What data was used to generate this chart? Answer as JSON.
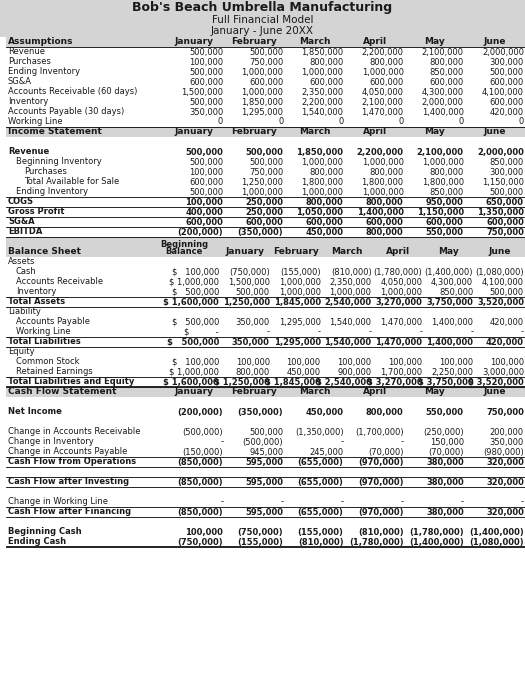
{
  "title1": "Bob's Beach Umbrella Manufacturing",
  "title2": "Full Financial Model",
  "title3": "January - June 20XX",
  "header_bg": "#d4d4d4",
  "months": [
    "January",
    "February",
    "March",
    "April",
    "May",
    "June"
  ],
  "assumptions_rows": [
    [
      "Assumptions",
      "January",
      "February",
      "March",
      "April",
      "May",
      "June"
    ],
    [
      "Revenue",
      "500,000",
      "500,000",
      "1,850,000",
      "2,200,000",
      "2,100,000",
      "2,000,000"
    ],
    [
      "Purchases",
      "100,000",
      "750,000",
      "800,000",
      "800,000",
      "800,000",
      "300,000"
    ],
    [
      "Ending Inventory",
      "500,000",
      "1,000,000",
      "1,000,000",
      "1,000,000",
      "850,000",
      "500,000"
    ],
    [
      "SG&A",
      "600,000",
      "600,000",
      "600,000",
      "600,000",
      "600,000",
      "600,000"
    ],
    [
      "Accounts Receivable (60 days)",
      "1,500,000",
      "1,000,000",
      "2,350,000",
      "4,050,000",
      "4,300,000",
      "4,100,000"
    ],
    [
      "Inventory",
      "500,000",
      "1,850,000",
      "2,200,000",
      "2,100,000",
      "2,000,000",
      "600,000"
    ],
    [
      "Accounts Payable (30 days)",
      "350,000",
      "1,295,000",
      "1,540,000",
      "1,470,000",
      "1,400,000",
      "420,000"
    ],
    [
      "Working Line",
      "0",
      "0",
      "0",
      "0",
      "0",
      "0"
    ]
  ],
  "income_rows": [
    [
      "Income Statement",
      "January",
      "February",
      "March",
      "April",
      "May",
      "June"
    ],
    [
      "",
      "",
      "",
      "",
      "",
      "",
      ""
    ],
    [
      "Revenue",
      "500,000",
      "500,000",
      "1,850,000",
      "2,200,000",
      "2,100,000",
      "2,000,000"
    ],
    [
      "  Beginning Inventory",
      "500,000",
      "500,000",
      "1,000,000",
      "1,000,000",
      "1,000,000",
      "850,000"
    ],
    [
      "    Purchases",
      "100,000",
      "750,000",
      "800,000",
      "800,000",
      "800,000",
      "300,000"
    ],
    [
      "    Total Available for Sale",
      "600,000",
      "1,250,000",
      "1,800,000",
      "1,800,000",
      "1,800,000",
      "1,150,000"
    ],
    [
      "  Ending Inventory",
      "500,000",
      "1,000,000",
      "1,000,000",
      "1,000,000",
      "850,000",
      "500,000"
    ],
    [
      "COGS",
      "100,000",
      "250,000",
      "800,000",
      "800,000",
      "950,000",
      "650,000"
    ],
    [
      "Gross Profit",
      "400,000",
      "250,000",
      "1,050,000",
      "1,400,000",
      "1,150,000",
      "1,350,000"
    ],
    [
      "SG&A",
      "600,000",
      "600,000",
      "600,000",
      "600,000",
      "600,000",
      "600,000"
    ],
    [
      "EBITDA",
      "(200,000)",
      "(350,000)",
      "450,000",
      "800,000",
      "550,000",
      "750,000"
    ]
  ],
  "balance_rows": [
    [
      "Balance Sheet",
      "Beginning\nBalance",
      "January",
      "February",
      "March",
      "April",
      "May",
      "June"
    ],
    [
      "Assets",
      "",
      "",
      "",
      "",
      "",
      "",
      ""
    ],
    [
      "  Cash",
      "$   100,000",
      "(750,000)",
      "(155,000)",
      "(810,000)",
      "(1,780,000)",
      "(1,400,000)",
      "(1,080,000)"
    ],
    [
      "  Accounts Receivable",
      "$ 1,000,000",
      "1,500,000",
      "1,000,000",
      "2,350,000",
      "4,050,000",
      "4,300,000",
      "4,100,000"
    ],
    [
      "  Inventory",
      "$   500,000",
      "500,000",
      "1,000,000",
      "1,000,000",
      "1,000,000",
      "850,000",
      "500,000"
    ],
    [
      "Total Assets",
      "$ 1,600,000",
      "1,250,000",
      "1,845,000",
      "2,540,000",
      "3,270,000",
      "3,750,000",
      "3,520,000"
    ],
    [
      "Liability",
      "",
      "",
      "",
      "",
      "",
      "",
      ""
    ],
    [
      "  Accounts Payable",
      "$   500,000",
      "350,000",
      "1,295,000",
      "1,540,000",
      "1,470,000",
      "1,400,000",
      "420,000"
    ],
    [
      "  Working Line",
      "$          -",
      "-",
      "-",
      "-",
      "-",
      "-",
      "-"
    ],
    [
      "Total Liabilities",
      "$   500,000",
      "350,000",
      "1,295,000",
      "1,540,000",
      "1,470,000",
      "1,400,000",
      "420,000"
    ],
    [
      "Equity",
      "",
      "",
      "",
      "",
      "",
      "",
      ""
    ],
    [
      "  Common Stock",
      "$   100,000",
      "100,000",
      "100,000",
      "100,000",
      "100,000",
      "100,000",
      "100,000"
    ],
    [
      "  Retained Earnings",
      "$ 1,000,000",
      "800,000",
      "450,000",
      "900,000",
      "1,700,000",
      "2,250,000",
      "3,000,000"
    ],
    [
      "Total Liabilities and Equity",
      "$ 1,600,000",
      "$ 1,250,000",
      "$ 1,845,000",
      "$ 2,540,000",
      "$ 3,270,000",
      "$ 3,750,000",
      "$ 3,520,000"
    ]
  ],
  "cashflow_rows": [
    [
      "Cash Flow Statement",
      "January",
      "February",
      "March",
      "April",
      "May",
      "June"
    ],
    [
      "",
      "",
      "",
      "",
      "",
      "",
      ""
    ],
    [
      "Net Income",
      "(200,000)",
      "(350,000)",
      "450,000",
      "800,000",
      "550,000",
      "750,000"
    ],
    [
      "",
      "",
      "",
      "",
      "",
      "",
      ""
    ],
    [
      "Change in Accounts Receivable",
      "(500,000)",
      "500,000",
      "(1,350,000)",
      "(1,700,000)",
      "(250,000)",
      "200,000"
    ],
    [
      "Change in Inventory",
      "-",
      "(500,000)",
      "-",
      "-",
      "150,000",
      "350,000"
    ],
    [
      "Change in Accounts Payable",
      "(150,000)",
      "945,000",
      "245,000",
      "(70,000)",
      "(70,000)",
      "(980,000)"
    ],
    [
      "Cash Flow from Operations",
      "(850,000)",
      "595,000",
      "(655,000)",
      "(970,000)",
      "380,000",
      "320,000"
    ],
    [
      "",
      "",
      "",
      "",
      "",
      "",
      ""
    ],
    [
      "Cash Flow after Investing",
      "(850,000)",
      "595,000",
      "(655,000)",
      "(970,000)",
      "380,000",
      "320,000"
    ],
    [
      "",
      "",
      "",
      "",
      "",
      "",
      ""
    ],
    [
      "Change in Working Line",
      "-",
      "-",
      "-",
      "-",
      "-",
      "-"
    ],
    [
      "Cash Flow after Financing",
      "(850,000)",
      "595,000",
      "(655,000)",
      "(970,000)",
      "380,000",
      "320,000"
    ],
    [
      "",
      "",
      "",
      "",
      "",
      "",
      ""
    ],
    [
      "Beginning Cash",
      "100,000",
      "(750,000)",
      "(155,000)",
      "(810,000)",
      "(1,780,000)",
      "(1,400,000)"
    ],
    [
      "Ending Cash",
      "(750,000)",
      "(155,000)",
      "(810,000)",
      "(1,780,000)",
      "(1,400,000)",
      "(1,080,000)"
    ]
  ],
  "income_bold": [
    "Revenue",
    "COGS",
    "Gross Profit",
    "SG&A",
    "EBITDA"
  ],
  "income_topline": [
    "COGS",
    "Gross Profit",
    "SG&A",
    "EBITDA"
  ],
  "income_bottomline": [
    "EBITDA"
  ],
  "balance_bold": [
    "Total Assets",
    "Total Liabilities",
    "Total Liabilities and Equity"
  ],
  "balance_topline": [
    "Total Assets",
    "Total Liabilities",
    "Total Liabilities and Equity"
  ],
  "balance_bottomline": [
    "Total Assets",
    "Total Liabilities",
    "Total Liabilities and Equity"
  ],
  "balance_doubleline": [
    "Total Liabilities and Equity"
  ],
  "cashflow_bold": [
    "Net Income",
    "Cash Flow from Operations",
    "Cash Flow after Investing",
    "Cash Flow after Financing",
    "Beginning Cash",
    "Ending Cash"
  ],
  "cashflow_topline": [
    "Cash Flow from Operations",
    "Cash Flow after Investing",
    "Cash Flow after Financing"
  ],
  "cashflow_bottomline": [
    "Cash Flow from Operations",
    "Cash Flow after Investing",
    "Cash Flow after Financing",
    "Ending Cash"
  ],
  "cashflow_doubleline": [
    "Ending Cash"
  ]
}
